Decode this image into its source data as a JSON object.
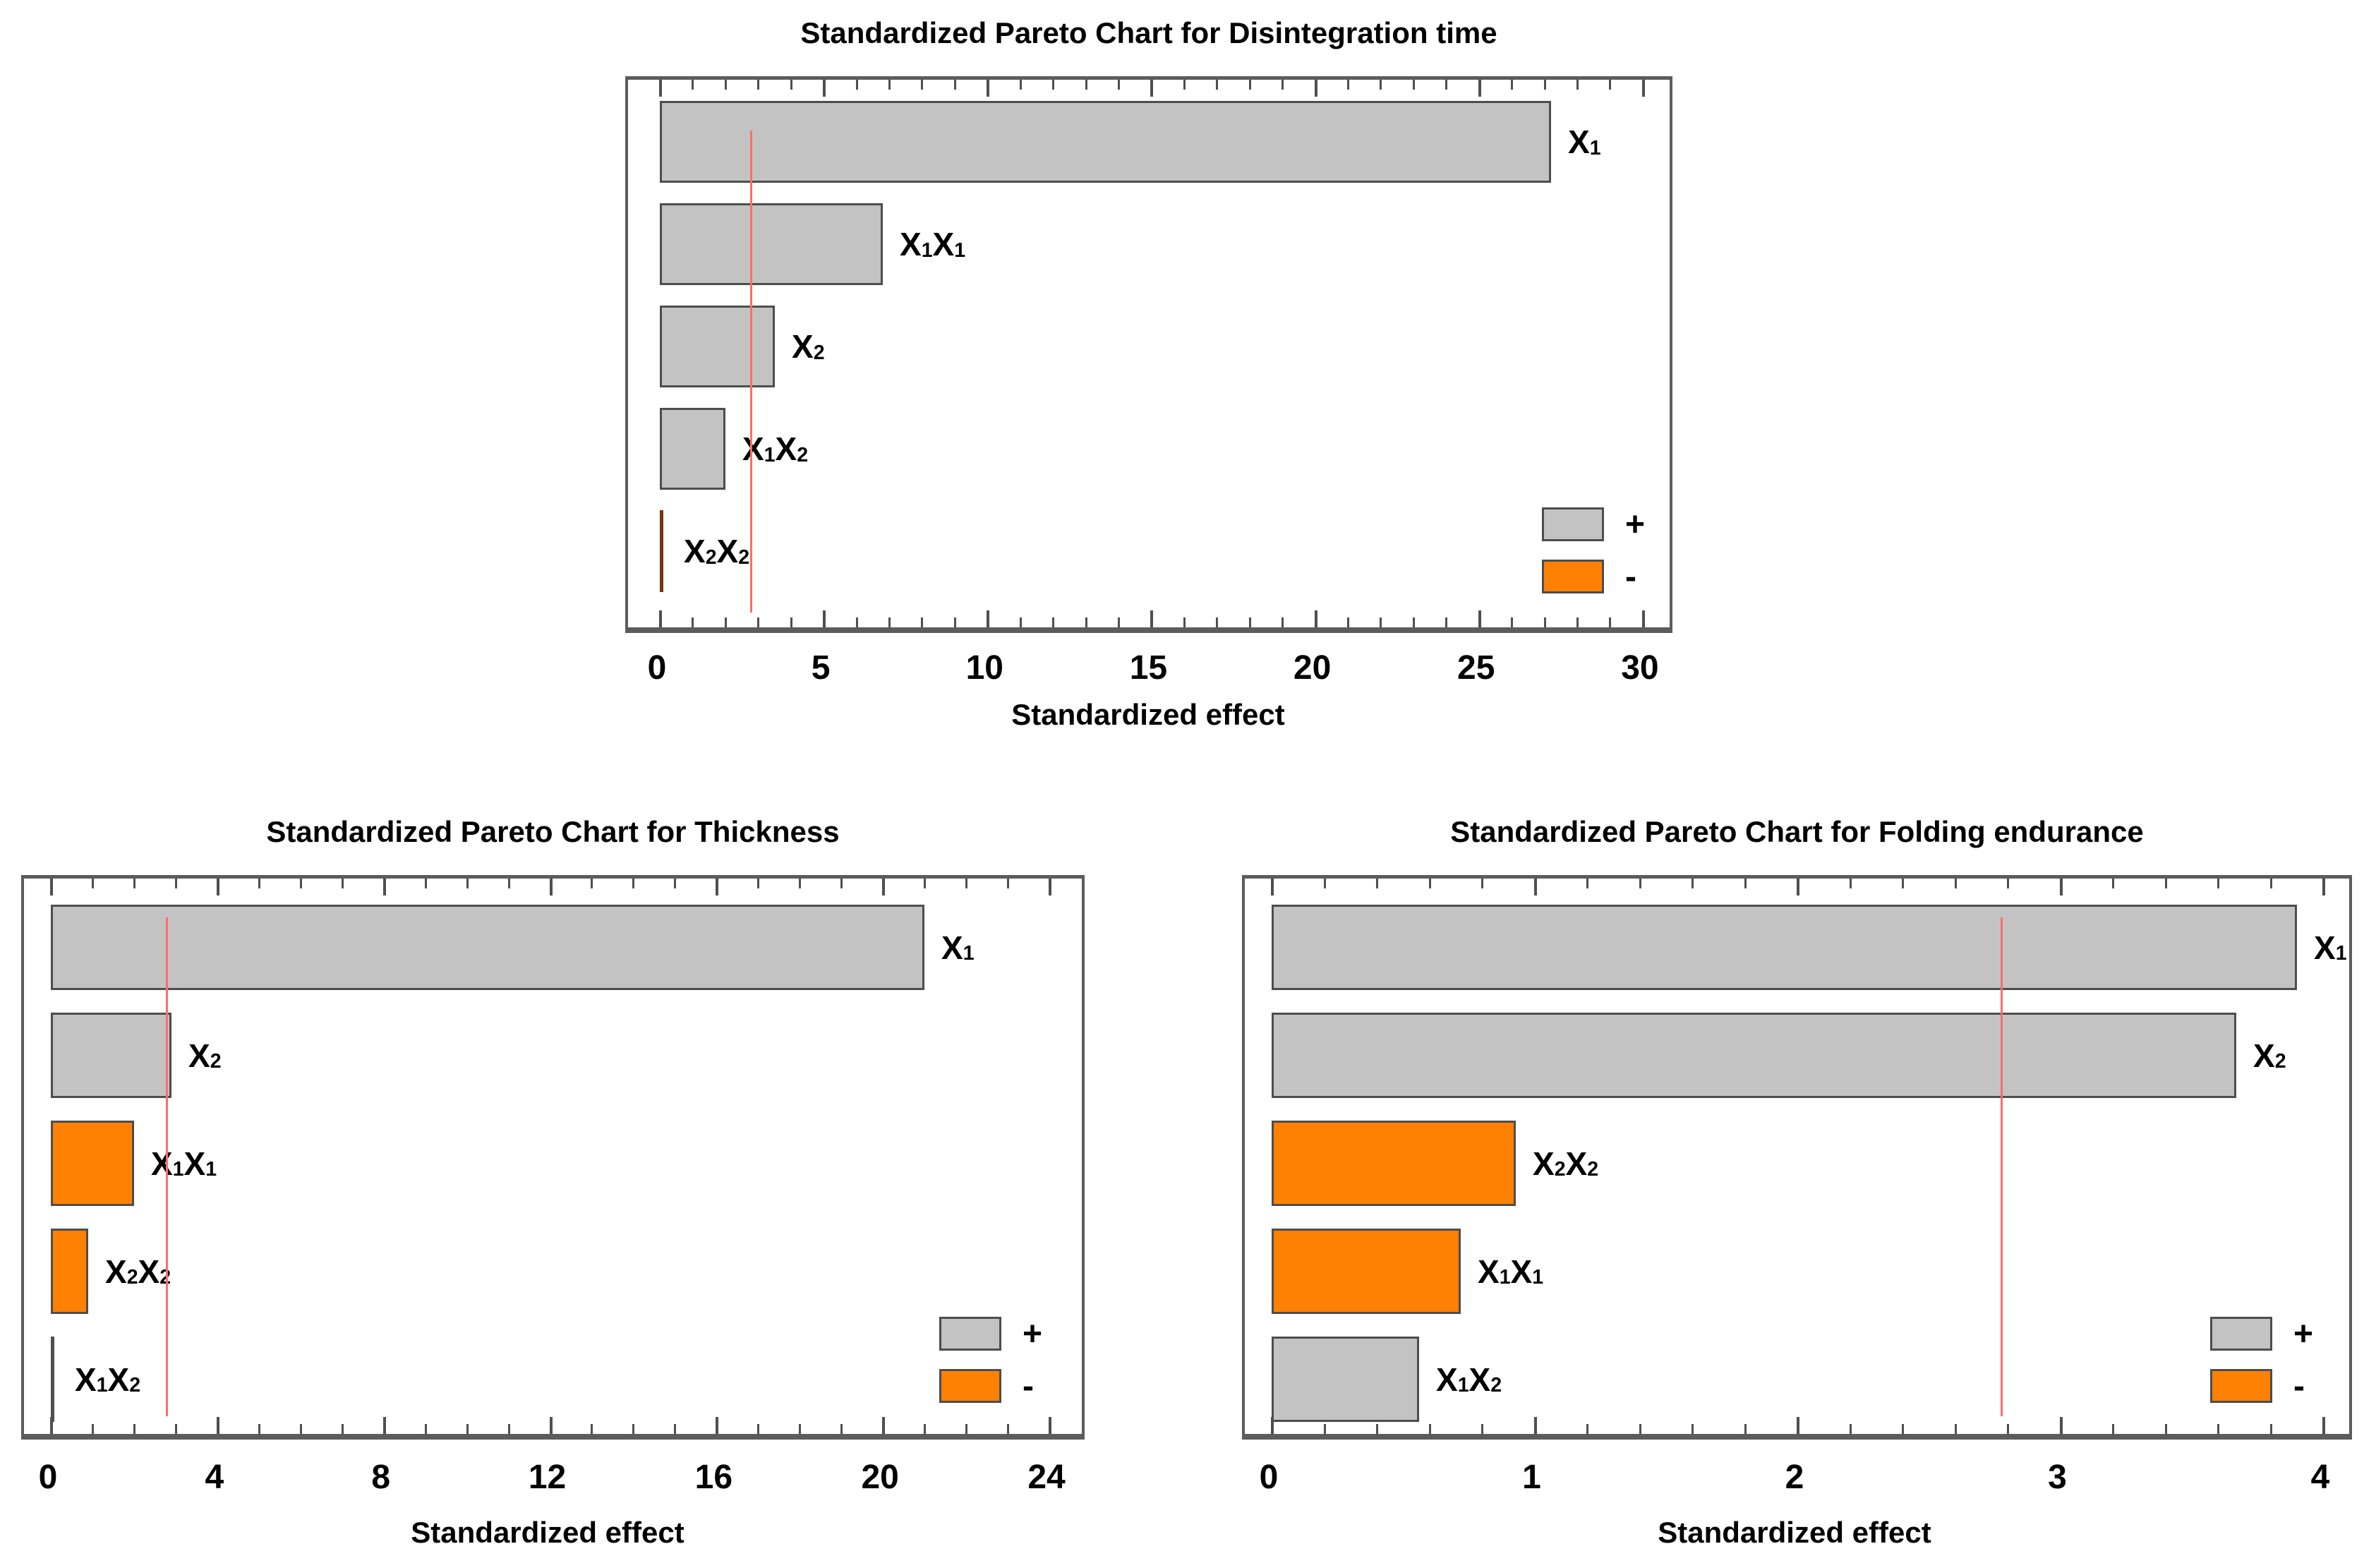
{
  "figure": {
    "description": "Three standardized Pareto charts",
    "x_axis_label": "Standardized effect"
  },
  "colors": {
    "positive_fill": "#c3c3c3",
    "negative_fill": "#ff8104",
    "bar_border": "#4d4d4d",
    "thin_positive": "#4f4f4f",
    "thin_negative": "#7a3410",
    "critical_line": "#fa6e6e",
    "frame": "#5c5c5c",
    "text": "#000000"
  },
  "chart_data": [
    {
      "id": "disintegration-time",
      "type": "bar",
      "orientation": "horizontal",
      "title": "Standardized Pareto Chart for Disintegration time",
      "xlabel": "Standardized effect",
      "categories": [
        "X1",
        "X1X1",
        "X2",
        "X1X2",
        "X2X2"
      ],
      "values": [
        27.2,
        6.8,
        3.5,
        2.0,
        0.1
      ],
      "signs": [
        "+",
        "+",
        "+",
        "+",
        "-"
      ],
      "critical_line": 2.776,
      "xticks": [
        0,
        5,
        10,
        15,
        20,
        25,
        30
      ],
      "minor_tick_step": 1,
      "xlim": [
        0,
        31
      ],
      "grid": "off",
      "legend_position": "bottom-right",
      "legend": [
        {
          "sign": "positive",
          "label": "+"
        },
        {
          "sign": "negative",
          "label": "-"
        }
      ]
    },
    {
      "id": "thickness",
      "type": "bar",
      "orientation": "horizontal",
      "title": "Standardized Pareto Chart for Thickness",
      "xlabel": "Standardized effect",
      "categories": [
        "X1",
        "X2",
        "X1X1",
        "X2X2",
        "X1X2"
      ],
      "values": [
        21.0,
        2.9,
        2.0,
        0.9,
        0.05
      ],
      "signs": [
        "+",
        "+",
        "-",
        "-",
        "+"
      ],
      "critical_line": 2.776,
      "xticks": [
        0,
        4,
        8,
        12,
        16,
        20,
        24
      ],
      "minor_tick_step": 1,
      "xlim": [
        0,
        24.8
      ],
      "grid": "off",
      "legend_position": "bottom-right",
      "legend": [
        {
          "sign": "positive",
          "label": "+"
        },
        {
          "sign": "negative",
          "label": "-"
        }
      ]
    },
    {
      "id": "folding-endurance",
      "type": "bar",
      "orientation": "horizontal",
      "title": "Standardized Pareto Chart for Folding endurance",
      "xlabel": "Standardized effect",
      "categories": [
        "X1",
        "X2",
        "X2X2",
        "X1X1",
        "X1X2"
      ],
      "values": [
        3.9,
        3.67,
        0.93,
        0.72,
        0.56
      ],
      "signs": [
        "+",
        "+",
        "-",
        "-",
        "+"
      ],
      "critical_line": 2.776,
      "xticks": [
        0,
        1,
        2,
        3,
        4
      ],
      "minor_tick_step": 0.2,
      "xlim": [
        0,
        4.1
      ],
      "grid": "off",
      "legend_position": "bottom-right",
      "legend": [
        {
          "sign": "positive",
          "label": "+"
        },
        {
          "sign": "negative",
          "label": "-"
        }
      ]
    }
  ]
}
